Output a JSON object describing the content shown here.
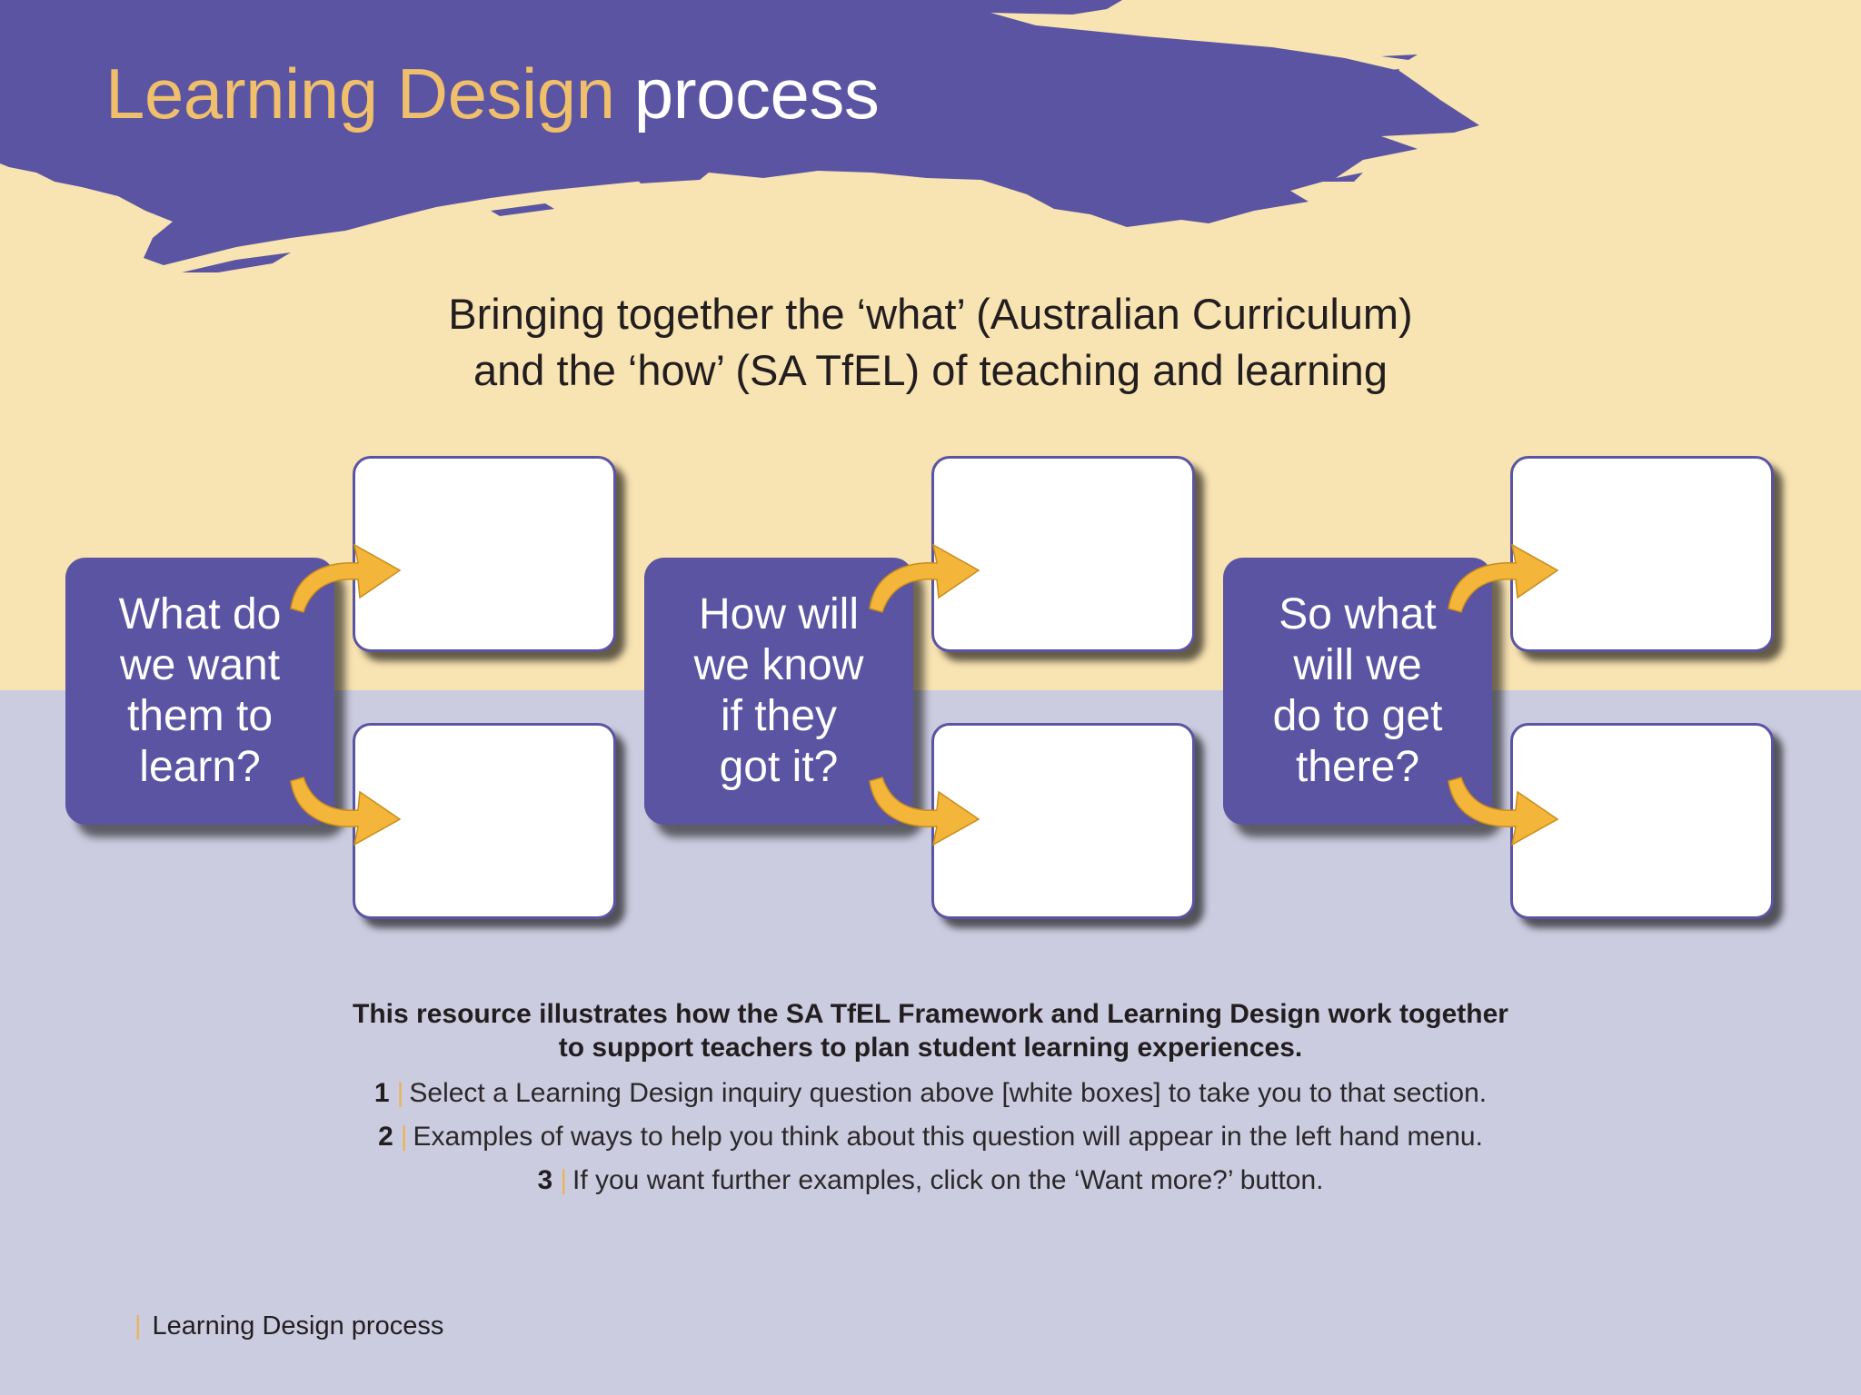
{
  "header": {
    "title_accent": "Learning Design",
    "title_main": "process"
  },
  "subtitle": {
    "line1": "Bringing together the ‘what’ (Australian Curriculum)",
    "line2": "and the ‘how’ (SA TfEL) of teaching and learning"
  },
  "questions": [
    {
      "lines": [
        "What do",
        "we want",
        "them to",
        "learn?"
      ]
    },
    {
      "lines": [
        "How will",
        "we know",
        "if they",
        "got it?"
      ]
    },
    {
      "lines": [
        "So what",
        "will we",
        "do to get",
        "there?"
      ]
    }
  ],
  "intro": {
    "line1": "This resource illustrates how the SA TfEL Framework and Learning Design work together",
    "line2": "to support teachers to plan student learning experiences."
  },
  "steps": [
    {
      "number": "1",
      "text": "Select a Learning Design inquiry question above [white boxes] to take you to that section."
    },
    {
      "number": "2",
      "text": "Examples of ways to help you think about this question will appear in the left hand menu."
    },
    {
      "number": "3",
      "text": "If you want further examples, click on the ‘Want more?’ button."
    }
  ],
  "footer": {
    "label": "Learning Design process",
    "separator": "|"
  },
  "icons": {
    "arrow": "curved-arrow-icon",
    "brush": "paint-brush-stroke"
  },
  "colors": {
    "brand_purple": "#5a54a2",
    "accent_orange": "#efbf6c",
    "arrow_gold": "#f3b53a",
    "bg_top": "#f8e3b2",
    "bg_bottom": "#cccce1"
  }
}
